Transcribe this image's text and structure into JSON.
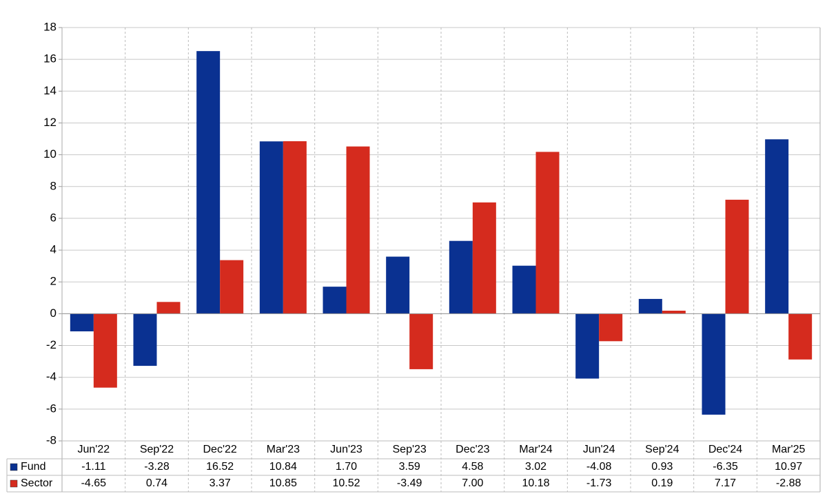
{
  "chart_data": {
    "type": "bar",
    "categories": [
      "Jun'22",
      "Sep'22",
      "Dec'22",
      "Mar'23",
      "Jun'23",
      "Sep'23",
      "Dec'23",
      "Mar'24",
      "Jun'24",
      "Sep'24",
      "Dec'24",
      "Mar'25"
    ],
    "series": [
      {
        "name": "Fund",
        "color": "#0a3191",
        "values": [
          -1.11,
          -3.28,
          16.52,
          10.84,
          1.7,
          3.59,
          4.58,
          3.02,
          -4.08,
          0.93,
          -6.35,
          10.97
        ],
        "value_labels": [
          "-1.11",
          "-3.28",
          "16.52",
          "10.84",
          "1.70",
          "3.59",
          "4.58",
          "3.02",
          "-4.08",
          "0.93",
          "-6.35",
          "10.97"
        ]
      },
      {
        "name": "Sector",
        "color": "#d52b1e",
        "values": [
          -4.65,
          0.74,
          3.37,
          10.85,
          10.52,
          -3.49,
          7,
          10.18,
          -1.73,
          0.19,
          7.17,
          -2.88
        ],
        "value_labels": [
          "-4.65",
          "0.74",
          "3.37",
          "10.85",
          "10.52",
          "-3.49",
          "7.00",
          "10.18",
          "-1.73",
          "0.19",
          "7.17",
          "-2.88"
        ]
      }
    ],
    "ylim": [
      -8,
      18
    ],
    "yticks": [
      -8,
      -6,
      -4,
      -2,
      0,
      2,
      4,
      6,
      8,
      10,
      12,
      14,
      16,
      18
    ],
    "grid": true
  }
}
